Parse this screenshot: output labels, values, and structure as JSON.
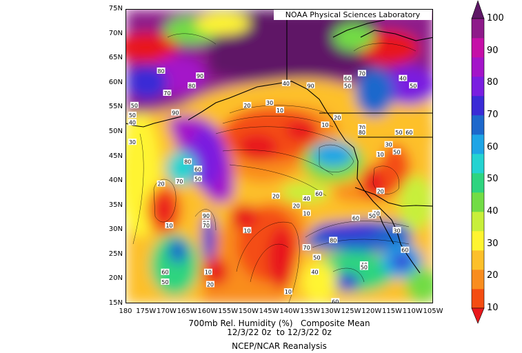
{
  "credit": "NOAA Physical Sciences Laboratory",
  "caption": {
    "line1": "700mb Rel. Humidity (%)   Composite Mean",
    "line2": "12/3/22 0z  to 12/3/22 0z",
    "line3": "NCEP/NCAR Reanalysis"
  },
  "lat_labels": [
    "75N",
    "70N",
    "65N",
    "60N",
    "55N",
    "50N",
    "45N",
    "40N",
    "35N",
    "30N",
    "25N",
    "20N",
    "15N"
  ],
  "lon_labels": [
    "180",
    "175W",
    "170W",
    "165W",
    "160W",
    "155W",
    "150W",
    "145W",
    "140W",
    "135W",
    "130W",
    "125W",
    "120W",
    "115W",
    "110W",
    "105W"
  ],
  "colorbar": {
    "labels": [
      "100",
      "90",
      "80",
      "70",
      "60",
      "50",
      "40",
      "30",
      "20",
      "10"
    ],
    "colors": [
      "#e8181c",
      "#f44d12",
      "#f98d1f",
      "#fdc02a",
      "#fff430",
      "#c8ef3a",
      "#72dc45",
      "#2ed47f",
      "#24d3d1",
      "#1ea5e6",
      "#1d68cc",
      "#3a2bd6",
      "#7a1ee0",
      "#a414c9",
      "#c50fa8",
      "#8e1a8a",
      "#5e1766"
    ]
  },
  "contour_labels": [
    {
      "text": "80",
      "lon": -171.5,
      "lat": 62.5
    },
    {
      "text": "90",
      "lon": -162,
      "lat": 61.5
    },
    {
      "text": "80",
      "lon": -164,
      "lat": 59.5
    },
    {
      "text": "70",
      "lon": -170,
      "lat": 58
    },
    {
      "text": "90",
      "lon": -168,
      "lat": 54
    },
    {
      "text": "50",
      "lon": -178,
      "lat": 55.5
    },
    {
      "text": "50",
      "lon": -178.5,
      "lat": 53.5
    },
    {
      "text": "40",
      "lon": -178.5,
      "lat": 52
    },
    {
      "text": "30",
      "lon": -178.5,
      "lat": 48
    },
    {
      "text": "40",
      "lon": -141,
      "lat": 60
    },
    {
      "text": "30",
      "lon": -145,
      "lat": 56
    },
    {
      "text": "20",
      "lon": -150.5,
      "lat": 55.5
    },
    {
      "text": "10",
      "lon": -142.5,
      "lat": 54.5
    },
    {
      "text": "90",
      "lon": -135,
      "lat": 59.5
    },
    {
      "text": "20",
      "lon": -128.5,
      "lat": 53
    },
    {
      "text": "10",
      "lon": -131.5,
      "lat": 51.5
    },
    {
      "text": "60",
      "lon": -126,
      "lat": 61
    },
    {
      "text": "50",
      "lon": -126,
      "lat": 59.5
    },
    {
      "text": "70",
      "lon": -122.5,
      "lat": 62
    },
    {
      "text": "40",
      "lon": -112.5,
      "lat": 61
    },
    {
      "text": "50",
      "lon": -110,
      "lat": 59.5
    },
    {
      "text": "70",
      "lon": -122.5,
      "lat": 51
    },
    {
      "text": "80",
      "lon": -122.5,
      "lat": 50
    },
    {
      "text": "50",
      "lon": -113.5,
      "lat": 50
    },
    {
      "text": "60",
      "lon": -111,
      "lat": 50
    },
    {
      "text": "30",
      "lon": -116,
      "lat": 47.5
    },
    {
      "text": "10",
      "lon": -118,
      "lat": 45.5
    },
    {
      "text": "50",
      "lon": -114,
      "lat": 46
    },
    {
      "text": "80",
      "lon": -165,
      "lat": 44
    },
    {
      "text": "60",
      "lon": -162.5,
      "lat": 42.5
    },
    {
      "text": "50",
      "lon": -162.5,
      "lat": 40.5
    },
    {
      "text": "70",
      "lon": -167,
      "lat": 40
    },
    {
      "text": "20",
      "lon": -171.5,
      "lat": 39.5
    },
    {
      "text": "10",
      "lon": -169.5,
      "lat": 31
    },
    {
      "text": "90",
      "lon": -160.5,
      "lat": 33
    },
    {
      "text": "80",
      "lon": -160.5,
      "lat": 31.5
    },
    {
      "text": "70",
      "lon": -160.5,
      "lat": 31
    },
    {
      "text": "10",
      "lon": -150.5,
      "lat": 30
    },
    {
      "text": "20",
      "lon": -143.5,
      "lat": 37
    },
    {
      "text": "20",
      "lon": -138.5,
      "lat": 35
    },
    {
      "text": "40",
      "lon": -136,
      "lat": 36.5
    },
    {
      "text": "10",
      "lon": -136,
      "lat": 33.5
    },
    {
      "text": "60",
      "lon": -133,
      "lat": 37.5
    },
    {
      "text": "20",
      "lon": -118,
      "lat": 38
    },
    {
      "text": "40",
      "lon": -119,
      "lat": 33.5
    },
    {
      "text": "50",
      "lon": -120,
      "lat": 33
    },
    {
      "text": "60",
      "lon": -124,
      "lat": 32.5
    },
    {
      "text": "30",
      "lon": -114,
      "lat": 30
    },
    {
      "text": "70",
      "lon": -136,
      "lat": 26.5
    },
    {
      "text": "80",
      "lon": -129.5,
      "lat": 28
    },
    {
      "text": "50",
      "lon": -133.5,
      "lat": 24.5
    },
    {
      "text": "40",
      "lon": -134,
      "lat": 21.5
    },
    {
      "text": "60",
      "lon": -112,
      "lat": 26
    },
    {
      "text": "40",
      "lon": -122,
      "lat": 23
    },
    {
      "text": "50",
      "lon": -122,
      "lat": 22.5
    },
    {
      "text": "60",
      "lon": -170.5,
      "lat": 21.5
    },
    {
      "text": "50",
      "lon": -170.5,
      "lat": 19.5
    },
    {
      "text": "10",
      "lon": -160,
      "lat": 21.5
    },
    {
      "text": "20",
      "lon": -159.5,
      "lat": 19
    },
    {
      "text": "10",
      "lon": -140.5,
      "lat": 17.5
    },
    {
      "text": "60",
      "lon": -129,
      "lat": 15.5
    }
  ]
}
